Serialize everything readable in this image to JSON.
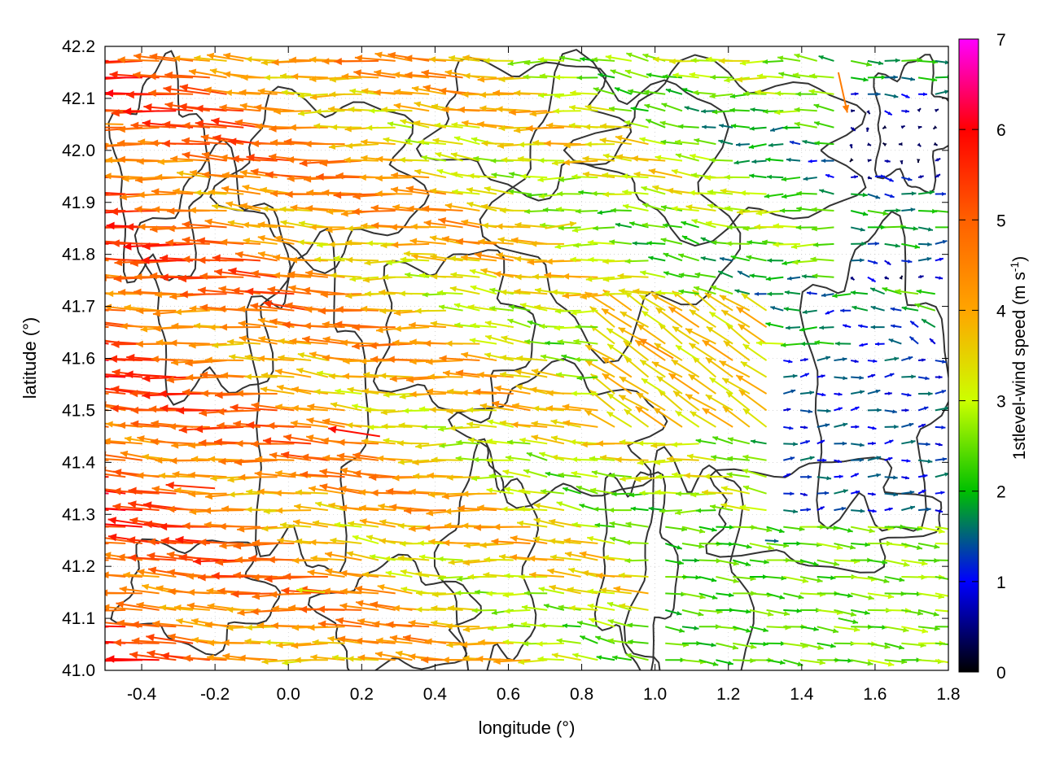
{
  "chart_data": {
    "type": "vector-field",
    "title": "",
    "xlabel": "longitude (°)",
    "ylabel": "latitude (°)",
    "xlim": [
      -0.5,
      1.8
    ],
    "ylim": [
      41.0,
      42.2
    ],
    "xticks": [
      -0.4,
      -0.2,
      0.0,
      0.2,
      0.4,
      0.6,
      0.8,
      1.0,
      1.2,
      1.4,
      1.6,
      1.8
    ],
    "xtick_labels": [
      "-0.4",
      "-0.2",
      "0.0",
      "0.2",
      "0.4",
      "0.6",
      "0.8",
      "1.0",
      "1.2",
      "1.4",
      "1.6",
      "1.8"
    ],
    "yticks": [
      41.0,
      41.1,
      41.2,
      41.3,
      41.4,
      41.5,
      41.6,
      41.7,
      41.8,
      41.9,
      42.0,
      42.1,
      42.2
    ],
    "ytick_labels": [
      "41.0",
      "41.1",
      "41.2",
      "41.3",
      "41.4",
      "41.5",
      "41.6",
      "41.7",
      "41.8",
      "41.9",
      "42.0",
      "42.1",
      "42.2"
    ],
    "grid": true,
    "colorbar": {
      "label_main": "1stlevel-wind speed (m s",
      "label_sup": "-1",
      "label_close": ")",
      "range": [
        0,
        7
      ],
      "ticks": [
        0,
        1,
        2,
        3,
        4,
        5,
        6,
        7
      ],
      "tick_labels": [
        "0",
        "1",
        "2",
        "3",
        "4",
        "5",
        "6",
        "7"
      ],
      "colors": [
        "#000000",
        "#0000ff",
        "#00c000",
        "#00ff00",
        "#ffff00",
        "#ffa500",
        "#ff0000",
        "#ff00ff"
      ]
    },
    "contour_color": "#333333",
    "vectors": [
      {
        "lon": -0.45,
        "lat": 42.05,
        "u": -4.2,
        "v": 0.1
      },
      {
        "lon": -0.3,
        "lat": 41.85,
        "u": -4.5,
        "v": 0.2
      },
      {
        "lon": -0.2,
        "lat": 41.35,
        "u": -5.5,
        "v": 0.4
      },
      {
        "lon": 0.25,
        "lat": 41.45,
        "u": -5.8,
        "v": 0.9
      },
      {
        "lon": 0.4,
        "lat": 41.8,
        "u": -3.5,
        "v": 0.1
      },
      {
        "lon": 0.7,
        "lat": 41.85,
        "u": 3.5,
        "v": 0.6
      },
      {
        "lon": 1.05,
        "lat": 41.6,
        "u": -3.8,
        "v": 2.2
      },
      {
        "lon": 1.3,
        "lat": 41.25,
        "u": 1.5,
        "v": -0.1
      },
      {
        "lon": 1.5,
        "lat": 41.1,
        "u": 2.2,
        "v": -0.5
      },
      {
        "lon": 1.6,
        "lat": 41.95,
        "u": 1.1,
        "v": 0.0
      },
      {
        "lon": 0.1,
        "lat": 41.15,
        "u": -3.2,
        "v": 0.3
      },
      {
        "lon": 1.5,
        "lat": 42.15,
        "u": 1.0,
        "v": -4.5
      }
    ]
  }
}
